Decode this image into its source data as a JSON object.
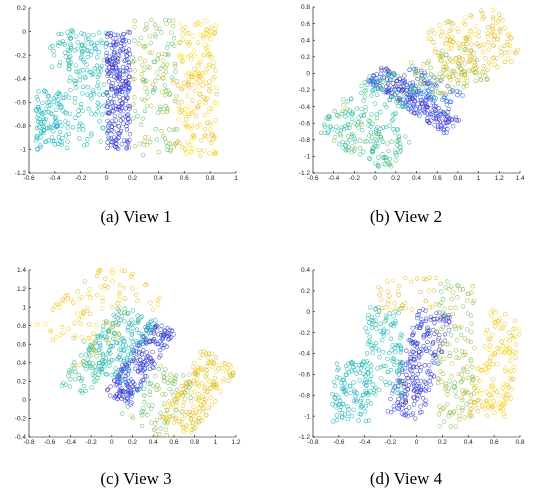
{
  "chart_data": [
    {
      "type": "scatter",
      "caption": "(a) View 1",
      "xlim": [
        -0.6,
        1
      ],
      "ylim": [
        -1.2,
        0.2
      ],
      "xticks": [
        "-0.6",
        "-0.4",
        "-0.2",
        "0",
        "0.2",
        "0.4",
        "0.6",
        "0.8",
        "1"
      ],
      "yticks": [
        "-1.2",
        "-1",
        "-0.8",
        "-0.6",
        "-0.4",
        "-0.2",
        "0",
        "0.2"
      ],
      "grid": false,
      "marker": "open-circle",
      "colormap": "parula",
      "seed": 11,
      "clusters": [
        {
          "shape": "box",
          "x": [
            -0.55,
            -0.3
          ],
          "y": [
            -1.0,
            -0.5
          ],
          "c": [
            0.35,
            0.5
          ],
          "n": 110
        },
        {
          "shape": "box",
          "x": [
            -0.3,
            0.0
          ],
          "y": [
            -1.0,
            0.0
          ],
          "c": [
            0.35,
            0.55
          ],
          "n": 130
        },
        {
          "shape": "box",
          "x": [
            -0.45,
            -0.15
          ],
          "y": [
            -0.3,
            0.05
          ],
          "c": [
            0.45,
            0.55
          ],
          "n": 40
        },
        {
          "shape": "box",
          "x": [
            0.0,
            0.18
          ],
          "y": [
            -1.0,
            0.0
          ],
          "c": [
            0.0,
            0.18
          ],
          "n": 260
        },
        {
          "shape": "box",
          "x": [
            0.2,
            0.55
          ],
          "y": [
            -1.05,
            0.1
          ],
          "c": [
            0.55,
            0.8
          ],
          "n": 150
        },
        {
          "shape": "box",
          "x": [
            0.55,
            0.85
          ],
          "y": [
            -1.05,
            0.1
          ],
          "c": [
            0.8,
            0.97
          ],
          "n": 190
        }
      ]
    },
    {
      "type": "scatter",
      "caption": "(b) View 2",
      "xlim": [
        -0.6,
        1.4
      ],
      "ylim": [
        -1.2,
        0.8
      ],
      "xticks": [
        "-0.6",
        "-0.4",
        "-0.2",
        "0",
        "0.2",
        "0.4",
        "0.6",
        "0.8",
        "1",
        "1.2",
        "1.4"
      ],
      "yticks": [
        "-1.2",
        "-1",
        "-0.8",
        "-0.6",
        "-0.4",
        "-0.2",
        "0",
        "0.2",
        "0.4",
        "0.6",
        "0.8"
      ],
      "grid": false,
      "marker": "open-circle",
      "colormap": "parula",
      "seed": 22,
      "clusters": [
        {
          "shape": "band",
          "p0": [
            0.0,
            0.0
          ],
          "p1": [
            0.75,
            -0.65
          ],
          "w": 0.12,
          "c": [
            0.0,
            0.18
          ],
          "n": 230
        },
        {
          "shape": "band",
          "p0": [
            0.3,
            0.0
          ],
          "p1": [
            0.8,
            -0.35
          ],
          "w": 0.12,
          "c": [
            0.05,
            0.3
          ],
          "n": 70
        },
        {
          "shape": "band",
          "p0": [
            -0.45,
            -0.5
          ],
          "p1": [
            0.25,
            -1.0
          ],
          "w": 0.25,
          "c": [
            0.45,
            0.65
          ],
          "n": 170
        },
        {
          "shape": "band",
          "p0": [
            -0.1,
            -0.1
          ],
          "p1": [
            0.3,
            -0.4
          ],
          "w": 0.25,
          "c": [
            0.45,
            0.6
          ],
          "n": 70
        },
        {
          "shape": "band",
          "p0": [
            0.6,
            0.2
          ],
          "p1": [
            1.3,
            0.5
          ],
          "w": 0.35,
          "c": [
            0.75,
            0.95
          ],
          "n": 170
        },
        {
          "shape": "band",
          "p0": [
            0.4,
            -0.1
          ],
          "p1": [
            1.0,
            0.15
          ],
          "w": 0.25,
          "c": [
            0.6,
            0.8
          ],
          "n": 90
        }
      ]
    },
    {
      "type": "scatter",
      "caption": "(c) View 3",
      "xlim": [
        -0.8,
        1.2
      ],
      "ylim": [
        -0.4,
        1.4
      ],
      "xticks": [
        "-0.8",
        "-0.6",
        "-0.4",
        "-0.2",
        "0",
        "0.2",
        "0.4",
        "0.6",
        "0.8",
        "1",
        "1.2"
      ],
      "yticks": [
        "-0.4",
        "-0.2",
        "0",
        "0.2",
        "0.4",
        "0.6",
        "0.8",
        "1",
        "1.2",
        "1.4"
      ],
      "grid": false,
      "marker": "open-circle",
      "colormap": "parula",
      "seed": 33,
      "clusters": [
        {
          "shape": "band",
          "p0": [
            0.05,
            0.0
          ],
          "p1": [
            0.5,
            0.8
          ],
          "w": 0.14,
          "c": [
            0.0,
            0.18
          ],
          "n": 230
        },
        {
          "shape": "band",
          "p0": [
            -0.1,
            0.3
          ],
          "p1": [
            0.25,
            0.95
          ],
          "w": 0.22,
          "c": [
            0.35,
            0.55
          ],
          "n": 160
        },
        {
          "shape": "band",
          "p0": [
            -0.35,
            0.1
          ],
          "p1": [
            -0.15,
            0.6
          ],
          "w": 0.15,
          "c": [
            0.45,
            0.6
          ],
          "n": 60
        },
        {
          "shape": "band",
          "p0": [
            0.6,
            -0.3
          ],
          "p1": [
            1.05,
            0.45
          ],
          "w": 0.2,
          "c": [
            0.75,
            0.95
          ],
          "n": 190
        },
        {
          "shape": "band",
          "p0": [
            -0.55,
            0.6
          ],
          "p1": [
            0.3,
            1.3
          ],
          "w": 0.35,
          "c": [
            0.8,
            0.95
          ],
          "n": 120
        },
        {
          "shape": "band",
          "p0": [
            0.3,
            -0.3
          ],
          "p1": [
            0.65,
            0.3
          ],
          "w": 0.25,
          "c": [
            0.55,
            0.75
          ],
          "n": 80
        }
      ]
    },
    {
      "type": "scatter",
      "caption": "(d) View 4",
      "xlim": [
        -0.8,
        0.8
      ],
      "ylim": [
        -1.2,
        0.4
      ],
      "xticks": [
        "-0.8",
        "-0.6",
        "-0.4",
        "-0.2",
        "0",
        "0.2",
        "0.4",
        "0.6",
        "0.8"
      ],
      "yticks": [
        "-1.2",
        "-1",
        "-0.8",
        "-0.6",
        "-0.4",
        "-0.2",
        "0",
        "0.2",
        "0.4"
      ],
      "grid": false,
      "marker": "open-circle",
      "colormap": "parula",
      "seed": 44,
      "clusters": [
        {
          "shape": "band",
          "p0": [
            -0.1,
            -1.0
          ],
          "p1": [
            0.15,
            0.0
          ],
          "w": 0.14,
          "c": [
            0.0,
            0.18
          ],
          "n": 240
        },
        {
          "shape": "box",
          "x": [
            -0.65,
            -0.35
          ],
          "y": [
            -1.05,
            -0.45
          ],
          "c": [
            0.35,
            0.5
          ],
          "n": 110
        },
        {
          "shape": "box",
          "x": [
            -0.4,
            -0.1
          ],
          "y": [
            -0.8,
            0.05
          ],
          "c": [
            0.4,
            0.55
          ],
          "n": 120
        },
        {
          "shape": "box",
          "x": [
            0.15,
            0.45
          ],
          "y": [
            -1.1,
            0.3
          ],
          "c": [
            0.6,
            0.8
          ],
          "n": 150
        },
        {
          "shape": "band",
          "p0": [
            0.55,
            -1.0
          ],
          "p1": [
            0.72,
            0.0
          ],
          "w": 0.15,
          "c": [
            0.8,
            0.97
          ],
          "n": 160
        },
        {
          "shape": "box",
          "x": [
            -0.3,
            0.15
          ],
          "y": [
            0.0,
            0.35
          ],
          "c": [
            0.75,
            0.9
          ],
          "n": 40
        }
      ]
    }
  ]
}
